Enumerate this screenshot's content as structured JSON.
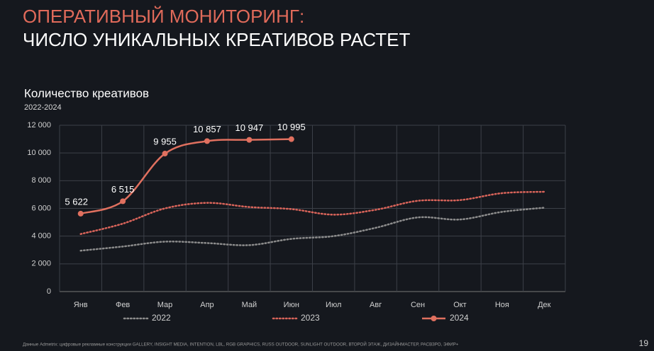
{
  "chart_data": {
    "type": "line",
    "heading": "ОПЕРАТИВНЫЙ МОНИТОРИНГ:",
    "title": "ЧИСЛО УНИКАЛЬНЫХ КРЕАТИВОВ РАСТЕТ",
    "chart_title": "Количество креативов",
    "subtitle": "2022-2024",
    "categories": [
      "Янв",
      "Фев",
      "Мар",
      "Апр",
      "Май",
      "Июн",
      "Июл",
      "Авг",
      "Сен",
      "Окт",
      "Ноя",
      "Дек"
    ],
    "series": [
      {
        "name": "2022",
        "color": "#8c8c8c",
        "style": "dotted",
        "marker": false,
        "values": [
          2950,
          3250,
          3600,
          3500,
          3350,
          3800,
          4000,
          4600,
          5350,
          5200,
          5750,
          6050
        ]
      },
      {
        "name": "2023",
        "color": "#d9645a",
        "style": "dotted",
        "marker": false,
        "values": [
          4150,
          4900,
          6000,
          6400,
          6100,
          5950,
          5550,
          5900,
          6550,
          6600,
          7100,
          7200
        ]
      },
      {
        "name": "2024",
        "color": "#e0705f",
        "style": "solid",
        "marker": true,
        "values": [
          5622,
          6515,
          9955,
          10857,
          10947,
          10995,
          null,
          null,
          null,
          null,
          null,
          null
        ],
        "value_labels": [
          "5 622",
          "6 515",
          "9 955",
          "10 857",
          "10 947",
          "10 995",
          null,
          null,
          null,
          null,
          null,
          null
        ]
      }
    ],
    "ylim": [
      0,
      12000
    ],
    "yticks": [
      0,
      {
        "value": 2000,
        "label": "2 000"
      },
      {
        "value": 4000,
        "label": "4 000"
      },
      {
        "value": 6000,
        "label": "6 000"
      },
      {
        "value": 8000,
        "label": "8 000"
      },
      {
        "value": 10000,
        "label": "10 000"
      },
      {
        "value": 12000,
        "label": "12 000"
      }
    ],
    "grid": true,
    "legend": "bottom",
    "source": "Данные Admetrix: цифровые рекламные конструкции GALLERY, INSIGHT MEDIA, INTENTION, LBL, RGB GRAPHICS, RUSS OUTDOOR, SUNLIGHT OUTDOOR, ВТОРОЙ ЭТАЖ, ДИЗАЙНМАСТЕР, РАСВЗРО, ЭФИР+",
    "page_number": "19"
  }
}
